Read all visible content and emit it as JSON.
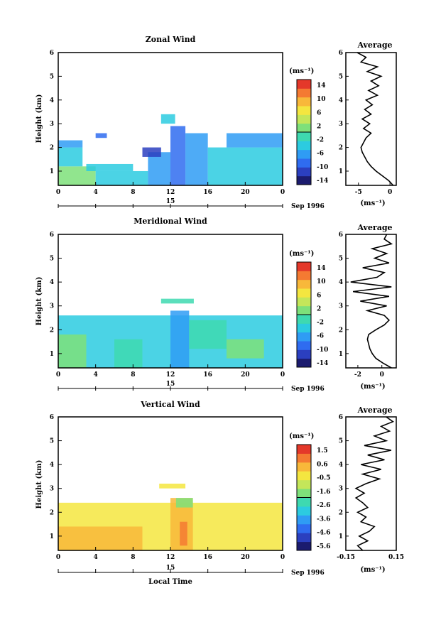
{
  "chart_data": [
    {
      "type": "heatmap",
      "title": "Zonal Wind",
      "ylabel": "Height (km)",
      "unit_label": "(ms⁻¹)",
      "xlim": [
        0,
        24
      ],
      "ylim": [
        0.4,
        6
      ],
      "x_ticks": [
        "0",
        "4",
        "8",
        "12",
        "16",
        "20",
        "0"
      ],
      "y_ticks": [
        "1",
        "2",
        "3",
        "4",
        "5",
        "6"
      ],
      "date_marker": "15",
      "date_label": "Sep 1996",
      "colorbar_ticks": [
        "14",
        "10",
        "6",
        "2",
        "-2",
        "-6",
        "-10",
        "-14"
      ],
      "average": {
        "title": "Average",
        "xlabel": "(ms⁻¹)",
        "xlim": [
          -7,
          1
        ],
        "x_ticks": [
          "-5",
          "0"
        ],
        "profile": [
          [
            0.4,
            0.5
          ],
          [
            0.6,
            -0.2
          ],
          [
            0.8,
            -1.2
          ],
          [
            1.0,
            -2.2
          ],
          [
            1.2,
            -3.0
          ],
          [
            1.4,
            -3.6
          ],
          [
            1.6,
            -4.0
          ],
          [
            1.8,
            -4.4
          ],
          [
            2.0,
            -4.6
          ],
          [
            2.2,
            -4.2
          ],
          [
            2.4,
            -3.8
          ],
          [
            2.6,
            -3.0
          ],
          [
            2.8,
            -4.2
          ],
          [
            3.0,
            -3.2
          ],
          [
            3.2,
            -4.4
          ],
          [
            3.4,
            -3.0
          ],
          [
            3.6,
            -4.0
          ],
          [
            3.8,
            -2.8
          ],
          [
            4.0,
            -3.8
          ],
          [
            4.2,
            -2.0
          ],
          [
            4.4,
            -3.4
          ],
          [
            4.6,
            -1.8
          ],
          [
            4.8,
            -3.0
          ],
          [
            5.0,
            -1.4
          ],
          [
            5.2,
            -3.6
          ],
          [
            5.4,
            -2.0
          ],
          [
            5.6,
            -4.6
          ],
          [
            5.8,
            -3.8
          ],
          [
            6.0,
            -5.2
          ]
        ]
      }
    },
    {
      "type": "heatmap",
      "title": "Meridional Wind",
      "ylabel": "Height (km)",
      "unit_label": "(ms⁻¹)",
      "xlim": [
        0,
        24
      ],
      "ylim": [
        0.4,
        6
      ],
      "x_ticks": [
        "0",
        "4",
        "8",
        "12",
        "16",
        "20",
        "0"
      ],
      "y_ticks": [
        "1",
        "2",
        "3",
        "4",
        "5",
        "6"
      ],
      "date_marker": "15",
      "date_label": "Sep 1996",
      "colorbar_ticks": [
        "14",
        "10",
        "6",
        "2",
        "-2",
        "-6",
        "-10",
        "-14"
      ],
      "average": {
        "title": "Average",
        "xlabel": "(ms⁻¹)",
        "xlim": [
          -3,
          1.2
        ],
        "x_ticks": [
          "-2",
          "0"
        ],
        "profile": [
          [
            0.4,
            0.8
          ],
          [
            0.6,
            0.1
          ],
          [
            0.8,
            -0.5
          ],
          [
            1.0,
            -0.8
          ],
          [
            1.2,
            -1.0
          ],
          [
            1.4,
            -1.1
          ],
          [
            1.6,
            -1.2
          ],
          [
            1.8,
            -1.1
          ],
          [
            2.0,
            -0.5
          ],
          [
            2.2,
            0.2
          ],
          [
            2.4,
            0.6
          ],
          [
            2.6,
            0.2
          ],
          [
            2.8,
            -1.2
          ],
          [
            3.0,
            0.4
          ],
          [
            3.2,
            -1.8
          ],
          [
            3.4,
            0.6
          ],
          [
            3.6,
            -2.4
          ],
          [
            3.8,
            0.8
          ],
          [
            4.0,
            -2.6
          ],
          [
            4.2,
            -0.4
          ],
          [
            4.4,
            0.2
          ],
          [
            4.6,
            -1.6
          ],
          [
            4.8,
            0.6
          ],
          [
            5.0,
            -0.6
          ],
          [
            5.2,
            0.4
          ],
          [
            5.4,
            -0.8
          ],
          [
            5.6,
            0.8
          ],
          [
            5.8,
            0.2
          ],
          [
            6.0,
            0.4
          ]
        ]
      }
    },
    {
      "type": "heatmap",
      "title": "Vertical Wind",
      "xlabel": "Local Time",
      "ylabel": "Height (km)",
      "unit_label": "(ms⁻¹)",
      "xlim": [
        0,
        24
      ],
      "ylim": [
        0.4,
        6
      ],
      "x_ticks": [
        "0",
        "4",
        "8",
        "12",
        "16",
        "20",
        "0"
      ],
      "y_ticks": [
        "1",
        "2",
        "3",
        "4",
        "5",
        "6"
      ],
      "date_marker": "15",
      "date_label": "Sep 1996",
      "colorbar_ticks": [
        "1.5",
        "0.6",
        "-0.5",
        "-1.6",
        "-2.6",
        "-3.6",
        "-4.6",
        "-5.6"
      ],
      "average": {
        "title": "Average",
        "xlabel": "(ms⁻¹)",
        "xlim": [
          -0.15,
          0.15
        ],
        "x_ticks": [
          "-0.15",
          "0.15"
        ],
        "profile": [
          [
            0.4,
            -0.05
          ],
          [
            0.6,
            -0.08
          ],
          [
            0.8,
            -0.02
          ],
          [
            1.0,
            -0.07
          ],
          [
            1.2,
            -0.01
          ],
          [
            1.4,
            0.02
          ],
          [
            1.6,
            -0.06
          ],
          [
            1.8,
            -0.03
          ],
          [
            2.0,
            -0.08
          ],
          [
            2.2,
            -0.02
          ],
          [
            2.4,
            -0.05
          ],
          [
            2.6,
            -0.09
          ],
          [
            2.8,
            -0.04
          ],
          [
            3.0,
            -0.09
          ],
          [
            3.2,
            -0.03
          ],
          [
            3.4,
            0.05
          ],
          [
            3.6,
            -0.05
          ],
          [
            3.8,
            0.06
          ],
          [
            4.0,
            -0.06
          ],
          [
            4.2,
            0.08
          ],
          [
            4.4,
            -0.02
          ],
          [
            4.6,
            0.12
          ],
          [
            4.8,
            -0.04
          ],
          [
            5.0,
            0.09
          ],
          [
            5.2,
            0.02
          ],
          [
            5.4,
            0.11
          ],
          [
            5.6,
            0.06
          ],
          [
            5.8,
            0.13
          ],
          [
            6.0,
            0.09
          ]
        ]
      }
    }
  ],
  "colormap": [
    "#1b1b6e",
    "#2b3fbf",
    "#2f6cf0",
    "#2f9cf4",
    "#2ccbe0",
    "#3ed9b0",
    "#7ee07a",
    "#c4e65a",
    "#f4e640",
    "#f8b83a",
    "#f47a32",
    "#e4382a"
  ],
  "fill_regions": {
    "zonal": [
      {
        "x0": 0.0,
        "x1": 4.0,
        "y0": 0.4,
        "y1": 1.2,
        "c": 6
      },
      {
        "x0": 4.0,
        "x1": 9.6,
        "y0": 0.4,
        "y1": 1.0,
        "c": 4
      },
      {
        "x0": 0.0,
        "x1": 2.6,
        "y0": 1.2,
        "y1": 2.0,
        "c": 4
      },
      {
        "x0": 0.0,
        "x1": 2.6,
        "y0": 2.0,
        "y1": 2.3,
        "c": 3
      },
      {
        "x0": 3.0,
        "x1": 8.0,
        "y0": 1.0,
        "y1": 1.3,
        "c": 4
      },
      {
        "x0": 9.6,
        "x1": 12.0,
        "y0": 0.4,
        "y1": 1.8,
        "c": 3
      },
      {
        "x0": 12.0,
        "x1": 13.6,
        "y0": 0.4,
        "y1": 2.9,
        "c": 2
      },
      {
        "x0": 13.6,
        "x1": 16.0,
        "y0": 0.4,
        "y1": 2.6,
        "c": 3
      },
      {
        "x0": 16.0,
        "x1": 24.0,
        "y0": 0.4,
        "y1": 2.0,
        "c": 4
      },
      {
        "x0": 18.0,
        "x1": 24.0,
        "y0": 2.0,
        "y1": 2.6,
        "c": 3
      },
      {
        "x0": 9.0,
        "x1": 11.0,
        "y0": 1.6,
        "y1": 2.0,
        "c": 1
      },
      {
        "x0": 11.0,
        "x1": 12.5,
        "y0": 3.0,
        "y1": 3.4,
        "c": 4
      },
      {
        "x0": 4.0,
        "x1": 5.2,
        "y0": 2.4,
        "y1": 2.6,
        "c": 2
      }
    ],
    "meridional": [
      {
        "x0": 0.0,
        "x1": 24.0,
        "y0": 0.4,
        "y1": 2.6,
        "c": 4
      },
      {
        "x0": 0.0,
        "x1": 3.0,
        "y0": 0.4,
        "y1": 1.8,
        "c": 6
      },
      {
        "x0": 6.0,
        "x1": 9.0,
        "y0": 0.4,
        "y1": 1.6,
        "c": 5
      },
      {
        "x0": 12.0,
        "x1": 14.0,
        "y0": 0.4,
        "y1": 2.8,
        "c": 3
      },
      {
        "x0": 14.0,
        "x1": 18.0,
        "y0": 1.2,
        "y1": 2.4,
        "c": 5
      },
      {
        "x0": 18.0,
        "x1": 22.0,
        "y0": 0.8,
        "y1": 1.6,
        "c": 6
      },
      {
        "x0": 11.0,
        "x1": 14.5,
        "y0": 3.1,
        "y1": 3.3,
        "c": 5
      }
    ],
    "vertical": [
      {
        "x0": 0.0,
        "x1": 24.0,
        "y0": 0.4,
        "y1": 2.4,
        "c": 8
      },
      {
        "x0": 0.0,
        "x1": 9.0,
        "y0": 0.4,
        "y1": 1.4,
        "c": 9
      },
      {
        "x0": 12.0,
        "x1": 14.4,
        "y0": 0.4,
        "y1": 2.6,
        "c": 9
      },
      {
        "x0": 13.0,
        "x1": 13.8,
        "y0": 0.6,
        "y1": 1.6,
        "c": 10
      },
      {
        "x0": 10.8,
        "x1": 13.6,
        "y0": 3.0,
        "y1": 3.2,
        "c": 8
      },
      {
        "x0": 12.6,
        "x1": 14.4,
        "y0": 2.2,
        "y1": 2.6,
        "c": 6
      }
    ]
  }
}
